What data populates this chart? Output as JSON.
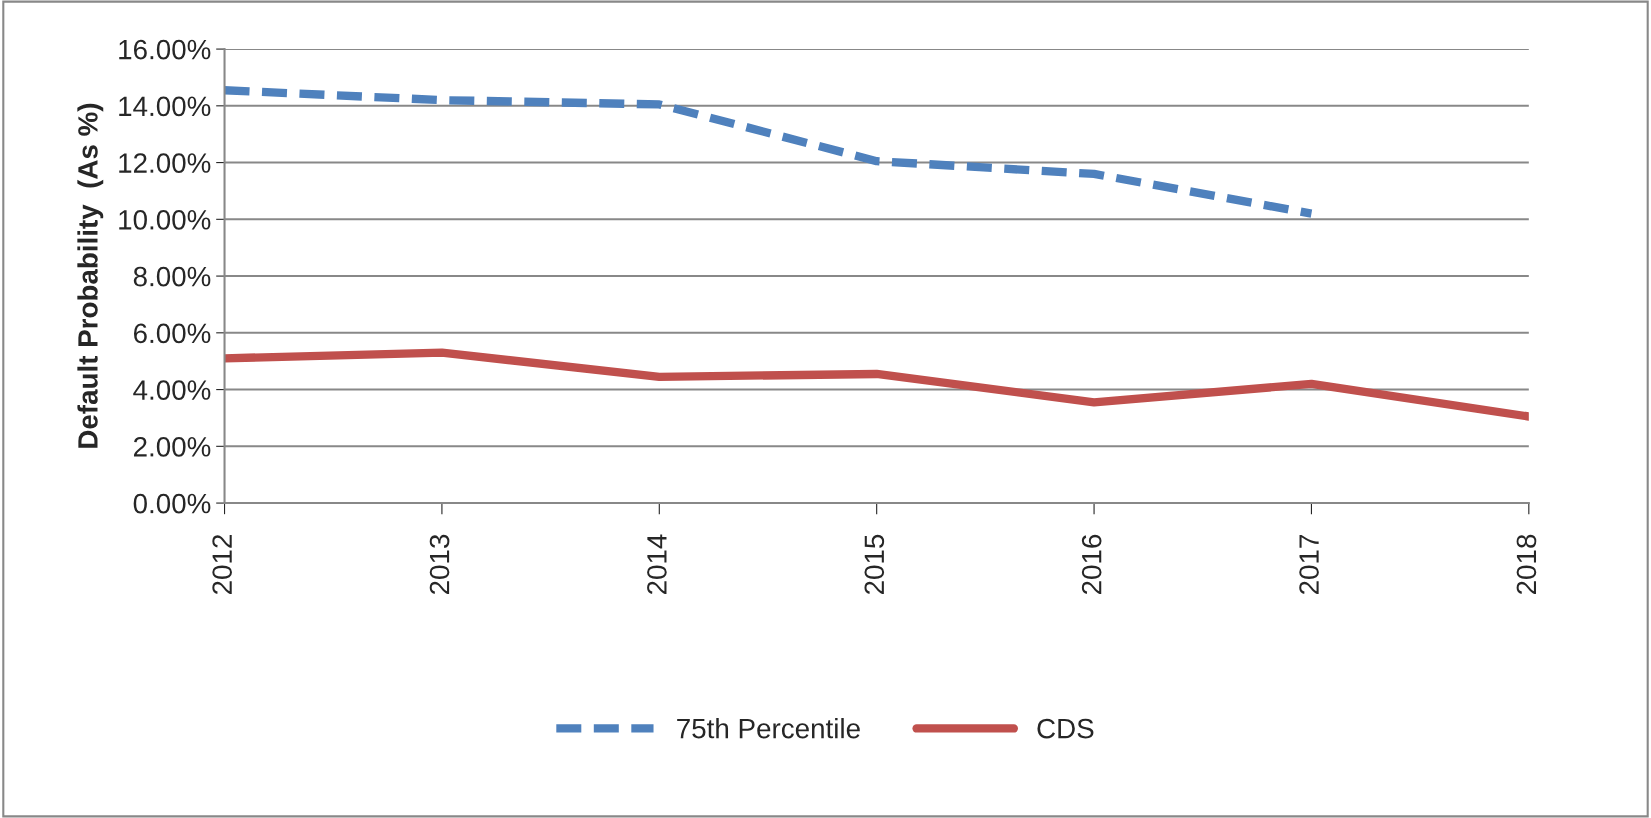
{
  "chart_data": {
    "type": "line",
    "ylabel": "Default Probability  (As %)",
    "categories": [
      "2012",
      "2013",
      "2014",
      "2015",
      "2016",
      "2017",
      "2018"
    ],
    "series": [
      {
        "name": "75th Percentile",
        "color": "#4f81bd",
        "line_style": "dashed",
        "values": [
          14.55,
          14.2,
          14.05,
          12.05,
          11.6,
          10.2,
          null
        ]
      },
      {
        "name": "CDS",
        "color": "#c0504d",
        "line_style": "solid",
        "values": [
          5.1,
          5.3,
          4.45,
          4.55,
          3.55,
          4.2,
          3.05
        ]
      }
    ],
    "ylim": [
      0,
      16
    ],
    "yticks": [
      {
        "value": 0,
        "label": "0.00%"
      },
      {
        "value": 2,
        "label": "2.00%"
      },
      {
        "value": 4,
        "label": "4.00%"
      },
      {
        "value": 6,
        "label": "6.00%"
      },
      {
        "value": 8,
        "label": "8.00%"
      },
      {
        "value": 10,
        "label": "10.00%"
      },
      {
        "value": 12,
        "label": "12.00%"
      },
      {
        "value": 14,
        "label": "14.00%"
      },
      {
        "value": 16,
        "label": "16.00%"
      }
    ],
    "grid": "y",
    "legend": "bottom",
    "marker": "none"
  }
}
